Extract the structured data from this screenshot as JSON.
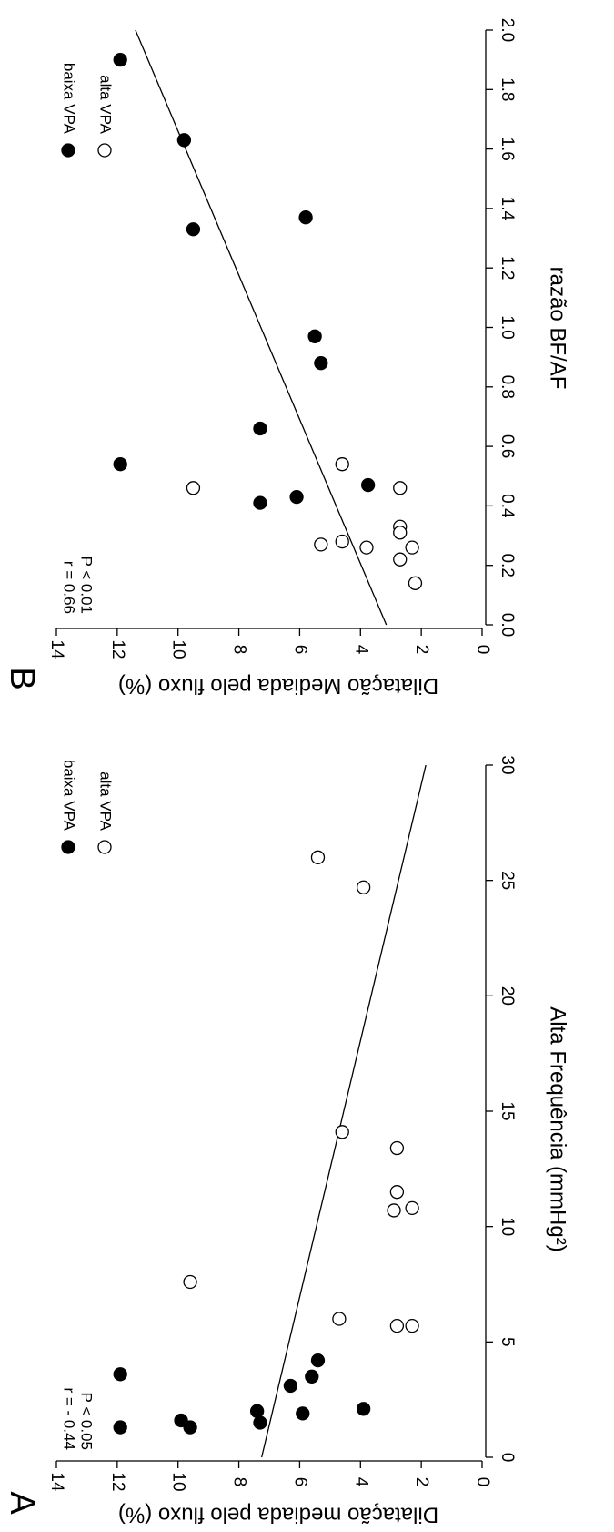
{
  "chart_data": [
    {
      "type": "scatter",
      "panel": "A",
      "xlabel": "Alta Frequência (mmHg²)",
      "ylabel": "Dilatação mediada pelo fluxo (%)",
      "annotations": [
        "r = - 0.44",
        "P < 0.05"
      ],
      "xlim": [
        0,
        30
      ],
      "xticks": [
        0,
        5,
        10,
        15,
        20,
        25,
        30
      ],
      "ylim": [
        0,
        14
      ],
      "yticks": [
        0,
        2,
        4,
        6,
        8,
        10,
        12,
        14
      ],
      "series": [
        {
          "name": "baixa VPA",
          "color": "#000000",
          "x": [
            1.3,
            3.6,
            1.6,
            1.3,
            2.0,
            1.5,
            3.1,
            1.9,
            3.5,
            4.2,
            2.1
          ],
          "values": [
            11.9,
            11.9,
            9.9,
            9.6,
            7.4,
            7.3,
            6.3,
            5.9,
            5.6,
            5.4,
            3.9
          ]
        },
        {
          "name": "alta VPA",
          "color": "#ffffff",
          "x": [
            7.6,
            26,
            24.7,
            6.0,
            14.1,
            13.4,
            11.5,
            10.8,
            10.7,
            5.7,
            5.7
          ],
          "values": [
            9.6,
            5.4,
            3.9,
            4.7,
            4.6,
            2.8,
            2.8,
            2.3,
            2.9,
            2.8,
            2.3
          ]
        }
      ],
      "trendline": {
        "x": [
          0,
          30
        ],
        "values": [
          7.25,
          1.85
        ]
      }
    },
    {
      "type": "scatter",
      "panel": "B",
      "xlabel": "razão BF/AF",
      "ylabel": "Dilatação Mediada pelo fluxo (%)",
      "annotations": [
        "r = 0.66",
        "P < 0.01"
      ],
      "xlim": [
        0,
        2
      ],
      "xticks": [
        {
          "value": 0,
          "label": "0.0"
        },
        {
          "value": 0.2,
          "label": "0.2"
        },
        {
          "value": 0.4,
          "label": "0.4"
        },
        {
          "value": 0.6,
          "label": "0.6"
        },
        {
          "value": 0.8,
          "label": "0.8"
        },
        {
          "value": 1,
          "label": "1.0"
        },
        {
          "value": 1.2,
          "label": "1.2"
        },
        {
          "value": 1.4,
          "label": "1.4"
        },
        {
          "value": 1.6,
          "label": "1.6"
        },
        {
          "value": 1.8,
          "label": "1.8"
        },
        {
          "value": 2,
          "label": "2.0"
        }
      ],
      "ylim": [
        0,
        14
      ],
      "yticks": [
        0,
        2,
        4,
        6,
        8,
        10,
        12,
        14
      ],
      "series": [
        {
          "name": "baixa VPA",
          "color": "#000000",
          "x": [
            1.9,
            1.63,
            1.33,
            1.37,
            0.97,
            0.88,
            0.66,
            0.54,
            0.41,
            0.43,
            0.47
          ],
          "values": [
            11.9,
            9.8,
            9.5,
            5.8,
            5.5,
            5.3,
            7.3,
            11.9,
            7.3,
            6.1,
            3.75
          ]
        },
        {
          "name": "alta VPA",
          "color": "#ffffff",
          "x": [
            0.46,
            0.54,
            0.46,
            0.27,
            0.28,
            0.26,
            0.33,
            0.31,
            0.22,
            0.26,
            0.14
          ],
          "values": [
            9.5,
            4.6,
            2.7,
            5.3,
            4.6,
            3.8,
            2.7,
            2.7,
            2.7,
            2.3,
            2.2
          ]
        }
      ],
      "trendline": {
        "x": [
          0,
          2
        ],
        "values": [
          3.15,
          11.4
        ]
      }
    }
  ]
}
